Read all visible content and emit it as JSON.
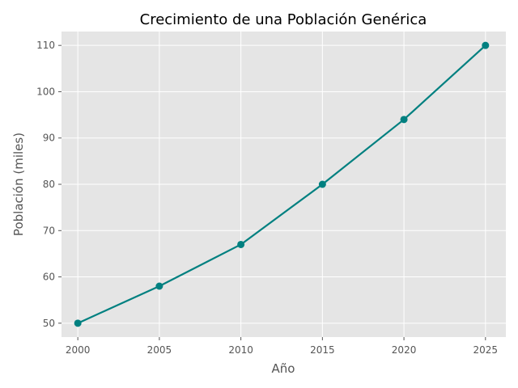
{
  "chart_data": {
    "type": "line",
    "title": "Crecimiento de una Población Genérica",
    "xlabel": "Año",
    "ylabel": "Población (miles)",
    "x": [
      2000,
      2005,
      2010,
      2015,
      2020,
      2025
    ],
    "series": [
      {
        "values": [
          50,
          58,
          67,
          80,
          94,
          110
        ],
        "color": "#008080",
        "marker": "circle"
      }
    ],
    "xlim": [
      1999,
      2026.25
    ],
    "ylim": [
      47,
      113
    ],
    "xticks": [
      2000,
      2005,
      2010,
      2015,
      2020,
      2025
    ],
    "yticks": [
      50,
      60,
      70,
      80,
      90,
      100,
      110
    ],
    "grid": true,
    "background_color": "#e5e5e5",
    "grid_color": "#ffffff",
    "legend": "none"
  }
}
